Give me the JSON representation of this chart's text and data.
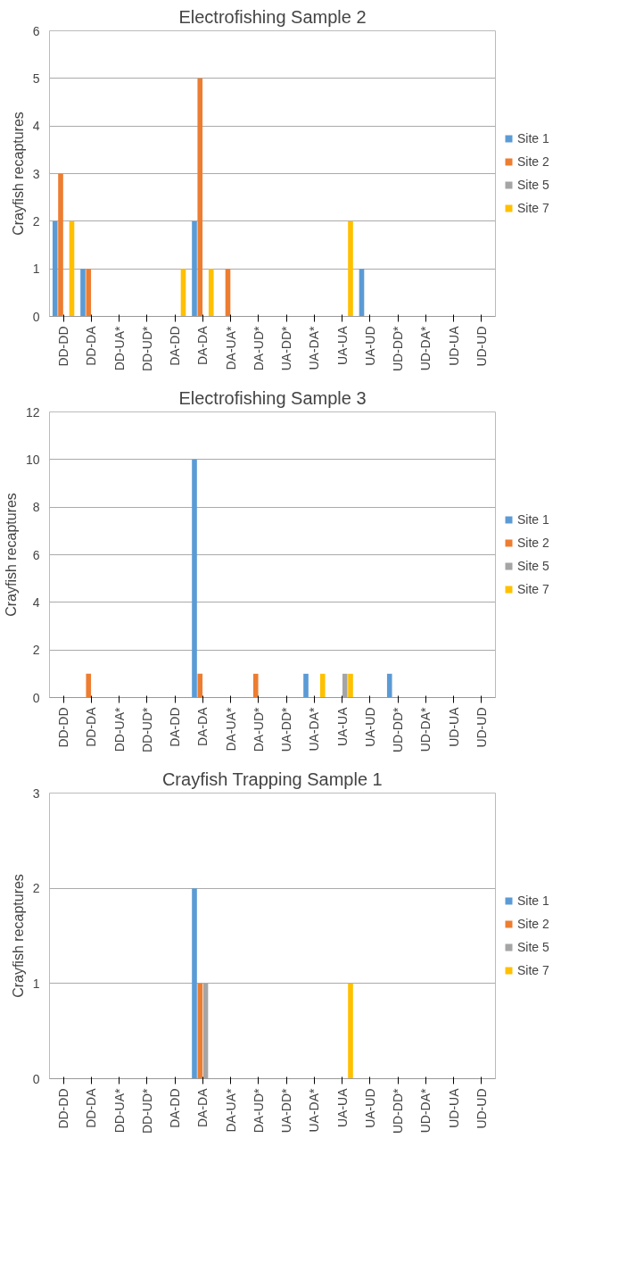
{
  "chart_data": [
    {
      "type": "bar",
      "title": "Electrofishing Sample 2",
      "ylabel": "Crayfish recaptures",
      "categories": [
        "DD-DD",
        "DD-DA",
        "DD-UA*",
        "DD-UD*",
        "DA-DD",
        "DA-DA",
        "DA-UA*",
        "DA-UD*",
        "UA-DD*",
        "UA-DA*",
        "UA-UA",
        "UA-UD",
        "UD-DD*",
        "UD-DA*",
        "UD-UA",
        "UD-UD"
      ],
      "series": [
        {
          "name": "Site 1",
          "color": "#5b9bd5",
          "values": [
            2,
            1,
            0,
            0,
            0,
            2,
            0,
            0,
            0,
            0,
            0,
            1,
            0,
            0,
            0,
            0
          ]
        },
        {
          "name": "Site 2",
          "color": "#ed7d31",
          "values": [
            3,
            1,
            0,
            0,
            0,
            5,
            1,
            0,
            0,
            0,
            0,
            0,
            0,
            0,
            0,
            0
          ]
        },
        {
          "name": "Site 5",
          "color": "#a5a5a5",
          "values": [
            0,
            0,
            0,
            0,
            0,
            0,
            0,
            0,
            0,
            0,
            0,
            0,
            0,
            0,
            0,
            0
          ]
        },
        {
          "name": "Site 7",
          "color": "#ffc000",
          "values": [
            2,
            0,
            0,
            0,
            1,
            1,
            0,
            0,
            0,
            0,
            2,
            0,
            0,
            0,
            0,
            0
          ]
        }
      ],
      "ylim": [
        0,
        6
      ],
      "yticks": [
        0,
        1,
        2,
        3,
        4,
        5,
        6
      ],
      "grid": "y",
      "legend": "right"
    },
    {
      "type": "bar",
      "title": "Electrofishing Sample 3",
      "ylabel": "Crayfish recaptures",
      "categories": [
        "DD-DD",
        "DD-DA",
        "DD-UA*",
        "DD-UD*",
        "DA-DD",
        "DA-DA",
        "DA-UA*",
        "DA-UD*",
        "UA-DD*",
        "UA-DA*",
        "UA-UA",
        "UA-UD",
        "UD-DD*",
        "UD-DA*",
        "UD-UA",
        "UD-UD"
      ],
      "series": [
        {
          "name": "Site 1",
          "color": "#5b9bd5",
          "values": [
            0,
            0,
            0,
            0,
            0,
            10,
            0,
            0,
            0,
            1,
            0,
            0,
            1,
            0,
            0,
            0
          ]
        },
        {
          "name": "Site 2",
          "color": "#ed7d31",
          "values": [
            0,
            1,
            0,
            0,
            0,
            1,
            0,
            1,
            0,
            0,
            0,
            0,
            0,
            0,
            0,
            0
          ]
        },
        {
          "name": "Site 5",
          "color": "#a5a5a5",
          "values": [
            0,
            0,
            0,
            0,
            0,
            0,
            0,
            0,
            0,
            0,
            1,
            0,
            0,
            0,
            0,
            0
          ]
        },
        {
          "name": "Site 7",
          "color": "#ffc000",
          "values": [
            0,
            0,
            0,
            0,
            0,
            0,
            0,
            0,
            0,
            1,
            1,
            0,
            0,
            0,
            0,
            0
          ]
        }
      ],
      "ylim": [
        0,
        12
      ],
      "yticks": [
        0,
        2,
        4,
        6,
        8,
        10,
        12
      ],
      "grid": "y",
      "legend": "right"
    },
    {
      "type": "bar",
      "title": "Crayfish Trapping Sample 1",
      "ylabel": "Crayfish recaptures",
      "categories": [
        "DD-DD",
        "DD-DA",
        "DD-UA*",
        "DD-UD*",
        "DA-DD",
        "DA-DA",
        "DA-UA*",
        "DA-UD*",
        "UA-DD*",
        "UA-DA*",
        "UA-UA",
        "UA-UD",
        "UD-DD*",
        "UD-DA*",
        "UD-UA",
        "UD-UD"
      ],
      "series": [
        {
          "name": "Site 1",
          "color": "#5b9bd5",
          "values": [
            0,
            0,
            0,
            0,
            0,
            2,
            0,
            0,
            0,
            0,
            0,
            0,
            0,
            0,
            0,
            0
          ]
        },
        {
          "name": "Site 2",
          "color": "#ed7d31",
          "values": [
            0,
            0,
            0,
            0,
            0,
            1,
            0,
            0,
            0,
            0,
            0,
            0,
            0,
            0,
            0,
            0
          ]
        },
        {
          "name": "Site 5",
          "color": "#a5a5a5",
          "values": [
            0,
            0,
            0,
            0,
            0,
            1,
            0,
            0,
            0,
            0,
            0,
            0,
            0,
            0,
            0,
            0
          ]
        },
        {
          "name": "Site 7",
          "color": "#ffc000",
          "values": [
            0,
            0,
            0,
            0,
            0,
            0,
            0,
            0,
            0,
            0,
            1,
            0,
            0,
            0,
            0,
            0
          ]
        }
      ],
      "ylim": [
        0,
        3
      ],
      "yticks": [
        0,
        1,
        2,
        3
      ],
      "grid": "y",
      "legend": "right"
    }
  ]
}
